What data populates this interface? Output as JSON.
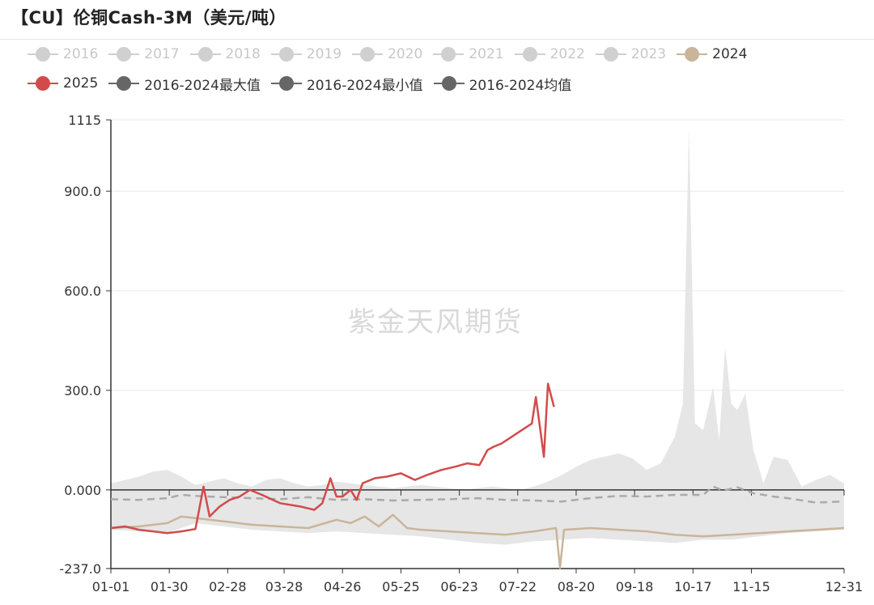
{
  "header": {
    "title": "【CU】伦铜Cash-3M（美元/吨）"
  },
  "watermark": "紫金天风期货",
  "legend": {
    "row1": [
      {
        "label": "2016",
        "color": "#cccccc",
        "active": false
      },
      {
        "label": "2017",
        "color": "#cccccc",
        "active": false
      },
      {
        "label": "2018",
        "color": "#cccccc",
        "active": false
      },
      {
        "label": "2019",
        "color": "#cccccc",
        "active": false
      },
      {
        "label": "2020",
        "color": "#cccccc",
        "active": false
      },
      {
        "label": "2021",
        "color": "#cccccc",
        "active": false
      },
      {
        "label": "2022",
        "color": "#cccccc",
        "active": false
      },
      {
        "label": "2023",
        "color": "#cccccc",
        "active": false
      },
      {
        "label": "2024",
        "color": "#c9b59a",
        "active": true
      }
    ],
    "row2": [
      {
        "label": "2025",
        "color": "#d24b4b",
        "active": true
      },
      {
        "label": "2016-2024最大值",
        "color": "#666666",
        "active": true
      },
      {
        "label": "2016-2024最小值",
        "color": "#666666",
        "active": true
      },
      {
        "label": "2016-2024均值",
        "color": "#666666",
        "active": true
      }
    ]
  },
  "chart_data": {
    "type": "line",
    "title": "【CU】伦铜Cash-3M（美元/吨）",
    "ylim": [
      -237.0,
      1115
    ],
    "y_ticks": [
      "1115",
      "900.0",
      "600.0",
      "300.0",
      "0.000",
      "-237.0"
    ],
    "x_ticks": [
      "01-01",
      "01-30",
      "02-28",
      "03-28",
      "04-26",
      "05-25",
      "06-23",
      "07-22",
      "08-20",
      "09-18",
      "10-17",
      "11-15",
      "12-31"
    ],
    "grid": true,
    "legend_position": "top",
    "series": [
      {
        "name": "2016-2024最大值",
        "style": "band-upper",
        "color": "#e6e6e6",
        "x": [
          1,
          8,
          15,
          22,
          29,
          36,
          43,
          50,
          57,
          64,
          71,
          78,
          85,
          92,
          99,
          106,
          113,
          120,
          127,
          134,
          141,
          148,
          155,
          162,
          169,
          176,
          183,
          190,
          197,
          204,
          211,
          218,
          225,
          232,
          239,
          246,
          253,
          260,
          267,
          274,
          281,
          285,
          288,
          291,
          295,
          300,
          303,
          306,
          309,
          312,
          316,
          320,
          325,
          330,
          337,
          344,
          351,
          358,
          365
        ],
        "y": [
          20,
          30,
          40,
          55,
          60,
          40,
          15,
          25,
          35,
          20,
          10,
          30,
          35,
          20,
          10,
          15,
          25,
          20,
          15,
          10,
          5,
          10,
          15,
          10,
          5,
          0,
          5,
          10,
          5,
          0,
          10,
          25,
          45,
          70,
          90,
          100,
          110,
          95,
          60,
          80,
          160,
          260,
          1090,
          200,
          180,
          310,
          150,
          430,
          260,
          240,
          290,
          120,
          20,
          100,
          90,
          10,
          30,
          45,
          20
        ]
      },
      {
        "name": "2016-2024最小值",
        "style": "band-lower",
        "color": "#e6e6e6",
        "x": [
          1,
          15,
          29,
          36,
          43,
          57,
          71,
          85,
          99,
          113,
          127,
          141,
          155,
          169,
          183,
          197,
          211,
          225,
          239,
          253,
          267,
          281,
          295,
          309,
          323,
          337,
          351,
          365
        ],
        "y": [
          -120,
          -125,
          -130,
          -115,
          -100,
          -110,
          -120,
          -125,
          -130,
          -125,
          -130,
          -135,
          -140,
          -150,
          -160,
          -165,
          -155,
          -150,
          -145,
          -150,
          -155,
          -160,
          -150,
          -150,
          -140,
          -130,
          -125,
          -120
        ]
      },
      {
        "name": "2016-2024均值",
        "style": "dashed",
        "color": "#aaaaaa",
        "x": [
          1,
          15,
          29,
          36,
          43,
          57,
          71,
          85,
          99,
          113,
          127,
          141,
          155,
          169,
          183,
          197,
          211,
          225,
          239,
          253,
          267,
          281,
          295,
          300,
          305,
          312,
          320,
          330,
          337,
          351,
          365
        ],
        "y": [
          -28,
          -30,
          -25,
          -15,
          -18,
          -22,
          -25,
          -28,
          -22,
          -30,
          -28,
          -32,
          -30,
          -28,
          -25,
          -30,
          -32,
          -35,
          -25,
          -18,
          -20,
          -15,
          -15,
          10,
          -2,
          8,
          -10,
          -20,
          -25,
          -38,
          -35
        ]
      },
      {
        "name": "2024",
        "style": "solid",
        "color": "#c9b59a",
        "x": [
          1,
          15,
          29,
          36,
          43,
          57,
          71,
          85,
          99,
          113,
          120,
          127,
          134,
          141,
          148,
          155,
          169,
          183,
          197,
          211,
          222,
          224,
          226,
          239,
          253,
          267,
          281,
          295,
          309,
          323,
          337,
          351,
          365
        ],
        "y": [
          -115,
          -110,
          -100,
          -80,
          -85,
          -95,
          -105,
          -110,
          -115,
          -90,
          -100,
          -80,
          -110,
          -75,
          -115,
          -120,
          -125,
          -130,
          -135,
          -125,
          -115,
          -235,
          -120,
          -115,
          -120,
          -125,
          -135,
          -140,
          -135,
          -130,
          -125,
          -120,
          -115
        ]
      },
      {
        "name": "2025",
        "style": "solid",
        "color": "#d24b4b",
        "x": [
          1,
          8,
          15,
          22,
          29,
          36,
          43,
          47,
          50,
          55,
          60,
          65,
          70,
          76,
          85,
          95,
          102,
          106,
          110,
          113,
          116,
          120,
          123,
          126,
          132,
          138,
          145,
          152,
          158,
          165,
          172,
          178,
          184,
          188,
          191,
          195,
          200,
          205,
          210,
          212,
          216,
          218,
          221
        ],
        "y": [
          -115,
          -110,
          -120,
          -125,
          -130,
          -125,
          -118,
          10,
          -80,
          -50,
          -30,
          -20,
          0,
          -15,
          -40,
          -50,
          -60,
          -40,
          35,
          -20,
          -20,
          0,
          -30,
          20,
          35,
          40,
          50,
          30,
          45,
          60,
          70,
          80,
          75,
          120,
          130,
          140,
          160,
          180,
          200,
          280,
          100,
          320,
          250
        ]
      }
    ]
  }
}
